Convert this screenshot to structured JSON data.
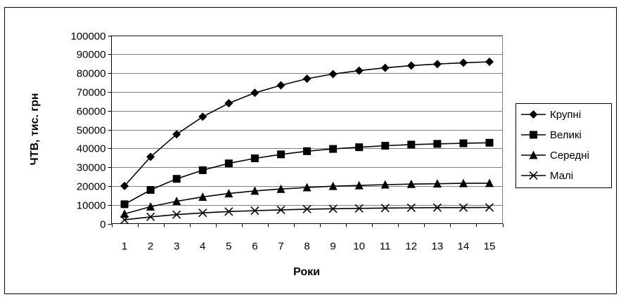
{
  "chart_data": {
    "type": "line",
    "title": "",
    "xlabel": "Роки",
    "ylabel": "ЧТВ, тис. грн",
    "x": [
      1,
      2,
      3,
      4,
      5,
      6,
      7,
      8,
      9,
      10,
      11,
      12,
      13,
      14,
      15
    ],
    "ylim": [
      0,
      100000
    ],
    "yticks": [
      0,
      10000,
      20000,
      30000,
      40000,
      50000,
      60000,
      70000,
      80000,
      90000,
      100000
    ],
    "grid": true,
    "legend_position": "right",
    "series": [
      {
        "name": "Крупні",
        "marker": "diamond",
        "values": [
          20000,
          35500,
          47500,
          56800,
          64000,
          69500,
          73500,
          77000,
          79500,
          81300,
          82800,
          84000,
          84800,
          85500,
          86000
        ]
      },
      {
        "name": "Великі",
        "marker": "square",
        "values": [
          10300,
          17900,
          23800,
          28400,
          32000,
          34700,
          36800,
          38500,
          39700,
          40600,
          41400,
          42000,
          42400,
          42700,
          43000
        ]
      },
      {
        "name": "Середні",
        "marker": "triangle",
        "values": [
          5200,
          9000,
          11900,
          14200,
          16000,
          17400,
          18400,
          19200,
          19900,
          20300,
          20700,
          21000,
          21200,
          21400,
          21500
        ]
      },
      {
        "name": "Малі",
        "marker": "x",
        "values": [
          2000,
          3600,
          4800,
          5700,
          6400,
          6900,
          7300,
          7700,
          7900,
          8100,
          8300,
          8400,
          8500,
          8500,
          8600
        ]
      }
    ]
  }
}
